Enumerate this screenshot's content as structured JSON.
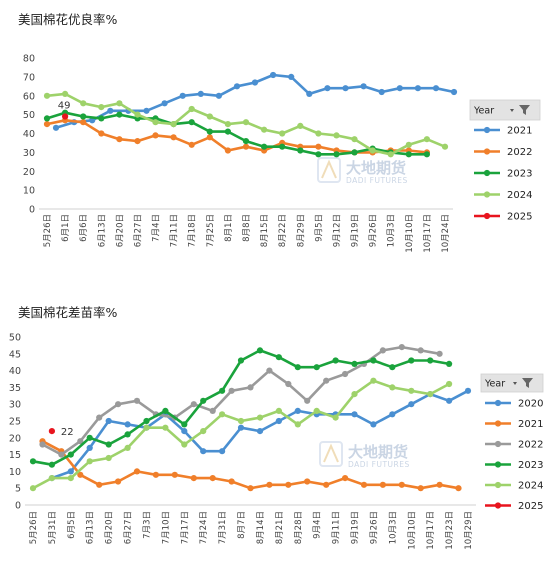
{
  "watermark": {
    "cn": "大地期货",
    "en": "DADI FUTURES"
  },
  "chart_data": [
    {
      "type": "line",
      "title": "美国棉花优良率%",
      "legend_title": "Year",
      "legend_placement": "right",
      "ylim": [
        0,
        80
      ],
      "yticks": [
        0,
        10,
        20,
        30,
        40,
        50,
        60,
        70,
        80
      ],
      "grid": false,
      "categories": [
        "5月26日",
        "6月1日",
        "6月6日",
        "6月13日",
        "6月20日",
        "6月27日",
        "7月4日",
        "7月11日",
        "7月18日",
        "7月25日",
        "8月1日",
        "8月8日",
        "8月15日",
        "8月22日",
        "8月29日",
        "9月5日",
        "9月12日",
        "9月19日",
        "9月26日",
        "10月3日",
        "10月10日",
        "10月17日",
        "10月24日"
      ],
      "annotations": [
        {
          "series": "2025",
          "text": "49"
        }
      ],
      "series": [
        {
          "name": "2021",
          "color": "#4a8fd1",
          "points": [
            [
              1.5,
              43
            ],
            [
              2.5,
              46
            ],
            [
              3.5,
              47
            ],
            [
              4.5,
              52
            ],
            [
              5.5,
              52
            ],
            [
              6.5,
              52
            ],
            [
              7.5,
              56
            ],
            [
              8.5,
              60
            ],
            [
              9.5,
              61
            ],
            [
              10.5,
              60
            ],
            [
              11.5,
              65
            ],
            [
              12.5,
              67
            ],
            [
              13.5,
              71
            ],
            [
              14.5,
              70
            ],
            [
              15.5,
              61
            ],
            [
              16.5,
              64
            ],
            [
              17.5,
              64
            ],
            [
              18.5,
              65
            ],
            [
              19.5,
              62
            ],
            [
              20.5,
              64
            ],
            [
              21.5,
              64
            ],
            [
              22.5,
              64
            ],
            [
              23.5,
              62
            ]
          ]
        },
        {
          "name": "2022",
          "color": "#f07f2a",
          "points": [
            [
              1,
              45
            ],
            [
              2,
              47
            ],
            [
              3,
              46
            ],
            [
              4,
              40
            ],
            [
              5,
              37
            ],
            [
              6,
              36
            ],
            [
              7,
              39
            ],
            [
              8,
              38
            ],
            [
              9,
              34
            ],
            [
              10,
              38
            ],
            [
              11,
              31
            ],
            [
              12,
              33
            ],
            [
              13,
              31
            ],
            [
              14,
              35
            ],
            [
              15,
              33
            ],
            [
              16,
              33
            ],
            [
              17,
              31
            ],
            [
              18,
              30
            ],
            [
              19,
              30
            ],
            [
              20,
              31
            ],
            [
              21,
              31
            ],
            [
              22,
              30
            ]
          ]
        },
        {
          "name": "2023",
          "color": "#1aa33c",
          "points": [
            [
              1,
              48
            ],
            [
              2,
              51
            ],
            [
              3,
              49
            ],
            [
              4,
              48
            ],
            [
              5,
              50
            ],
            [
              6,
              48
            ],
            [
              7,
              48
            ],
            [
              8,
              45
            ],
            [
              9,
              46
            ],
            [
              10,
              41
            ],
            [
              11,
              41
            ],
            [
              12,
              36
            ],
            [
              13,
              33
            ],
            [
              14,
              33
            ],
            [
              15,
              31
            ],
            [
              16,
              29
            ],
            [
              17,
              29
            ],
            [
              18,
              30
            ],
            [
              19,
              32
            ],
            [
              20,
              30
            ],
            [
              21,
              29
            ],
            [
              22,
              29
            ]
          ]
        },
        {
          "name": "2024",
          "color": "#9ed26a",
          "points": [
            [
              1,
              60
            ],
            [
              2,
              61
            ],
            [
              3,
              56
            ],
            [
              4,
              54
            ],
            [
              5,
              56
            ],
            [
              6,
              50
            ],
            [
              7,
              46
            ],
            [
              8,
              45
            ],
            [
              9,
              53
            ],
            [
              10,
              49
            ],
            [
              11,
              45
            ],
            [
              12,
              46
            ],
            [
              13,
              42
            ],
            [
              14,
              40
            ],
            [
              15,
              44
            ],
            [
              16,
              40
            ],
            [
              17,
              39
            ],
            [
              18,
              37
            ],
            [
              19,
              31
            ],
            [
              20,
              29
            ],
            [
              21,
              34
            ],
            [
              22,
              37
            ],
            [
              23,
              33
            ]
          ]
        },
        {
          "name": "2025",
          "color": "#e8141e",
          "points": [
            [
              2,
              49
            ]
          ]
        }
      ]
    },
    {
      "type": "line",
      "title": "美国棉花差苗率%",
      "legend_title": "Year",
      "legend_placement": "right",
      "ylim": [
        0,
        50
      ],
      "yticks": [
        0,
        5,
        10,
        15,
        20,
        25,
        30,
        35,
        40,
        45,
        50
      ],
      "grid": false,
      "categories": [
        "5月26日",
        "5月31日",
        "6月5日",
        "6月13日",
        "6月20日",
        "6月27日",
        "7月3日",
        "7月10日",
        "7月17日",
        "7月24日",
        "7月31日",
        "8月7日",
        "8月14日",
        "8月21日",
        "8月28日",
        "9月4日",
        "9月11日",
        "9月19日",
        "9月26日",
        "10月3日",
        "10月10日",
        "10月17日",
        "10月23日",
        "10月29日"
      ],
      "annotations": [
        {
          "series": "2025",
          "text": "22"
        }
      ],
      "series": [
        {
          "name": "2020",
          "color": "#4a8fd1",
          "points": [
            [
              2,
              8
            ],
            [
              3,
              10
            ],
            [
              4,
              17
            ],
            [
              5,
              25
            ],
            [
              6,
              24
            ],
            [
              7,
              23
            ],
            [
              8,
              27
            ],
            [
              9,
              22
            ],
            [
              10,
              16
            ],
            [
              11,
              16
            ],
            [
              12,
              23
            ],
            [
              13,
              22
            ],
            [
              14,
              25
            ],
            [
              15,
              28
            ],
            [
              16,
              27
            ],
            [
              17,
              27
            ],
            [
              18,
              27
            ],
            [
              19,
              24
            ],
            [
              20,
              27
            ],
            [
              21,
              30
            ],
            [
              22,
              33
            ],
            [
              23,
              31
            ],
            [
              24,
              34
            ]
          ]
        },
        {
          "name": "2021",
          "color": "#f07f2a",
          "points": [
            [
              1.5,
              19
            ],
            [
              2.5,
              16
            ],
            [
              3.5,
              9
            ],
            [
              4.5,
              6
            ],
            [
              5.5,
              7
            ],
            [
              6.5,
              10
            ],
            [
              7.5,
              9
            ],
            [
              8.5,
              9
            ],
            [
              9.5,
              8
            ],
            [
              10.5,
              8
            ],
            [
              11.5,
              7
            ],
            [
              12.5,
              5
            ],
            [
              13.5,
              6
            ],
            [
              14.5,
              6
            ],
            [
              15.5,
              7
            ],
            [
              16.5,
              6
            ],
            [
              17.5,
              8
            ],
            [
              18.5,
              6
            ],
            [
              19.5,
              6
            ],
            [
              20.5,
              6
            ],
            [
              21.5,
              5
            ],
            [
              22.5,
              6
            ],
            [
              23.5,
              5
            ]
          ]
        },
        {
          "name": "2022",
          "color": "#9a9a9a",
          "points": [
            [
              1.5,
              18
            ],
            [
              2.5,
              15
            ],
            [
              3.5,
              19
            ],
            [
              4.5,
              26
            ],
            [
              5.5,
              30
            ],
            [
              6.5,
              31
            ],
            [
              7.5,
              27
            ],
            [
              8.5,
              26
            ],
            [
              9.5,
              30
            ],
            [
              10.5,
              28
            ],
            [
              11.5,
              34
            ],
            [
              12.5,
              35
            ],
            [
              13.5,
              40
            ],
            [
              14.5,
              36
            ],
            [
              15.5,
              31
            ],
            [
              16.5,
              37
            ],
            [
              17.5,
              39
            ],
            [
              18.5,
              42
            ],
            [
              19.5,
              46
            ],
            [
              20.5,
              47
            ],
            [
              21.5,
              46
            ],
            [
              22.5,
              45
            ]
          ]
        },
        {
          "name": "2023",
          "color": "#1aa33c",
          "points": [
            [
              1,
              13
            ],
            [
              2,
              12
            ],
            [
              3,
              15
            ],
            [
              4,
              20
            ],
            [
              5,
              18
            ],
            [
              6,
              21
            ],
            [
              7,
              25
            ],
            [
              8,
              28
            ],
            [
              9,
              24
            ],
            [
              10,
              31
            ],
            [
              11,
              34
            ],
            [
              12,
              43
            ],
            [
              13,
              46
            ],
            [
              14,
              44
            ],
            [
              15,
              41
            ],
            [
              16,
              41
            ],
            [
              17,
              43
            ],
            [
              18,
              42
            ],
            [
              19,
              43
            ],
            [
              20,
              41
            ],
            [
              21,
              43
            ],
            [
              22,
              43
            ],
            [
              23,
              42
            ]
          ]
        },
        {
          "name": "2024",
          "color": "#9ed26a",
          "points": [
            [
              1,
              5
            ],
            [
              2,
              8
            ],
            [
              3,
              8
            ],
            [
              4,
              13
            ],
            [
              5,
              14
            ],
            [
              6,
              17
            ],
            [
              7,
              23
            ],
            [
              8,
              23
            ],
            [
              9,
              18
            ],
            [
              10,
              22
            ],
            [
              11,
              27
            ],
            [
              12,
              25
            ],
            [
              13,
              26
            ],
            [
              14,
              28
            ],
            [
              15,
              24
            ],
            [
              16,
              28
            ],
            [
              17,
              26
            ],
            [
              18,
              33
            ],
            [
              19,
              37
            ],
            [
              20,
              35
            ],
            [
              21,
              34
            ],
            [
              22,
              33
            ],
            [
              23,
              36
            ]
          ]
        },
        {
          "name": "2025",
          "color": "#e8141e",
          "points": [
            [
              2,
              22
            ]
          ]
        }
      ]
    }
  ]
}
